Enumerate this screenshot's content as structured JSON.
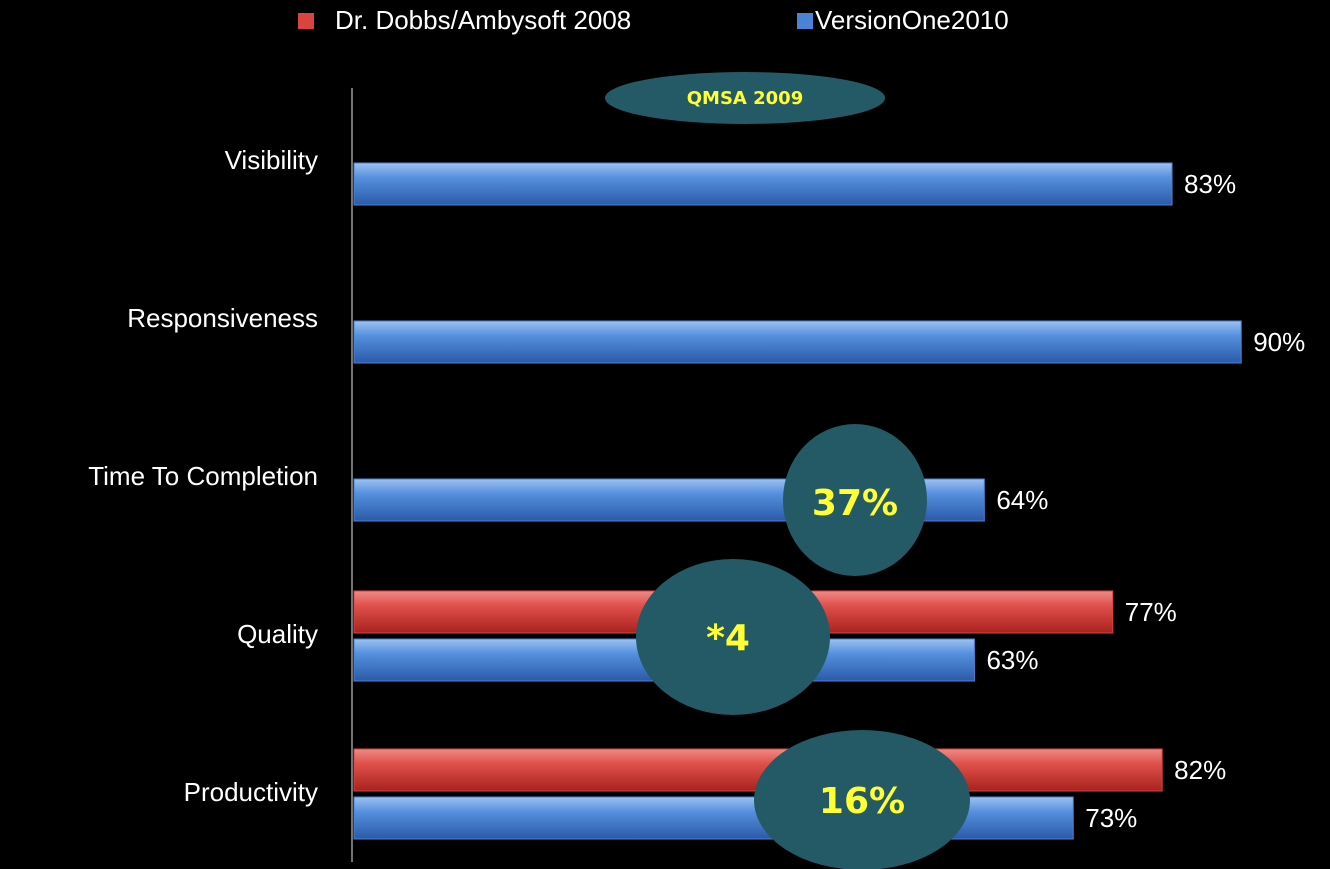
{
  "chart_data": {
    "type": "barh",
    "categories": [
      "Visibility",
      "Responsiveness",
      "Time To Completion",
      "Quality",
      "Productivity"
    ],
    "series": [
      {
        "name": "Dr. Dobbs/Ambysoft 2008",
        "color": "#d9443f",
        "values": [
          null,
          null,
          null,
          77,
          82
        ],
        "value_labels": [
          null,
          null,
          null,
          "77%",
          "82%"
        ]
      },
      {
        "name": "VersionOne2010",
        "color": "#4a82d4",
        "values": [
          83,
          90,
          64,
          63,
          73
        ],
        "value_labels": [
          "83%",
          "90%",
          "64%",
          "63%",
          "73%"
        ]
      }
    ],
    "annotations": [
      "QMSA 2009",
      "37%",
      "*4",
      "16%"
    ]
  }
}
